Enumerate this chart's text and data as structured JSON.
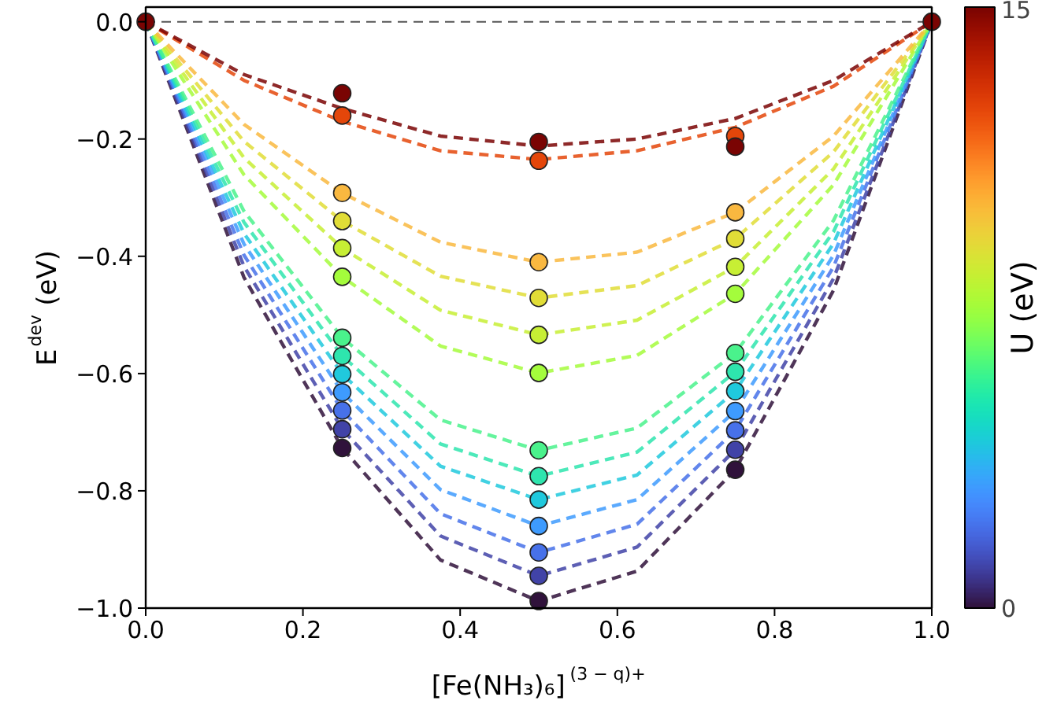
{
  "chart_data": {
    "type": "line",
    "xlabel": "[Fe(NH₃)₆]$^{(3 − q)+}$",
    "ylabel": "E$^{dev}$ (eV)",
    "clabel": "U (eV)",
    "clim": [
      0,
      15
    ],
    "cticks": [
      0,
      15
    ],
    "xlim": [
      0,
      1
    ],
    "ylim": [
      -1.0,
      0.025
    ],
    "xticks": [
      {
        "value": 0,
        "label": "0.0"
      },
      {
        "value": 0.2,
        "label": "0.2"
      },
      {
        "value": 0.4,
        "label": "0.4"
      },
      {
        "value": 0.6,
        "label": "0.6"
      },
      {
        "value": 0.8,
        "label": "0.8"
      },
      {
        "value": 1,
        "label": "1.0"
      }
    ],
    "yticks": [
      {
        "value": -1.0,
        "label": "−1.0"
      },
      {
        "value": -0.8,
        "label": "−0.8"
      },
      {
        "value": -0.6,
        "label": "−0.6"
      },
      {
        "value": -0.4,
        "label": "−0.4"
      },
      {
        "value": -0.2,
        "label": "−0.2"
      },
      {
        "value": 0,
        "label": "0.0"
      }
    ],
    "grid": false,
    "line_style": "dashed",
    "ref_lines": [
      {
        "axis": "y",
        "value": 0,
        "color": "#555555",
        "line_style": "dashed"
      }
    ],
    "x": [
      0,
      0.125,
      0.25,
      0.375,
      0.5,
      0.625,
      0.75,
      0.875,
      1
    ],
    "series": [
      {
        "color": "#30123b",
        "values": [
          0,
          -0.436,
          -0.727,
          -0.918,
          -0.988,
          -0.937,
          -0.764,
          -0.458,
          0
        ]
      },
      {
        "color": "#4143a7",
        "values": [
          0,
          -0.417,
          -0.695,
          -0.877,
          -0.945,
          -0.896,
          -0.73,
          -0.438,
          0
        ]
      },
      {
        "color": "#4771e9",
        "values": [
          0,
          -0.398,
          -0.663,
          -0.839,
          -0.905,
          -0.857,
          -0.697,
          -0.418,
          0
        ]
      },
      {
        "color": "#3e9bfe",
        "values": [
          0,
          -0.379,
          -0.632,
          -0.798,
          -0.86,
          -0.815,
          -0.664,
          -0.398,
          0
        ]
      },
      {
        "color": "#20c9dd",
        "values": [
          0,
          -0.361,
          -0.601,
          -0.758,
          -0.815,
          -0.773,
          -0.63,
          -0.378,
          0
        ]
      },
      {
        "color": "#2ee5ae",
        "values": [
          0,
          -0.342,
          -0.57,
          -0.72,
          -0.775,
          -0.734,
          -0.597,
          -0.358,
          0
        ]
      },
      {
        "color": "#4af28c",
        "values": [
          0,
          -0.323,
          -0.539,
          -0.679,
          -0.731,
          -0.693,
          -0.565,
          -0.339,
          0
        ]
      },
      {
        "color": "#a4fc3c",
        "values": [
          0,
          -0.261,
          -0.435,
          -0.553,
          -0.599,
          -0.569,
          -0.464,
          -0.278,
          0
        ]
      },
      {
        "color": "#c7ef34",
        "values": [
          0,
          -0.232,
          -0.386,
          -0.492,
          -0.534,
          -0.509,
          -0.418,
          -0.251,
          0
        ]
      },
      {
        "color": "#e1dd37",
        "values": [
          0,
          -0.204,
          -0.34,
          -0.434,
          -0.471,
          -0.45,
          -0.37,
          -0.222,
          0
        ]
      },
      {
        "color": "#f9b840",
        "values": [
          0,
          -0.175,
          -0.292,
          -0.376,
          -0.41,
          -0.393,
          -0.325,
          -0.195,
          0
        ]
      },
      {
        "color": "#e4460a",
        "values": [
          0,
          -0.1,
          -0.17,
          -0.22,
          -0.235,
          -0.22,
          -0.18,
          -0.11,
          0
        ]
      },
      {
        "color": "#7a0403",
        "values": [
          0,
          -0.09,
          -0.148,
          -0.195,
          -0.212,
          -0.2,
          -0.165,
          -0.1,
          0
        ]
      },
      {
        "type": "scatter",
        "marker": "circle",
        "x": [
          0.25,
          0.5,
          0.75,
          0.25,
          0.5,
          0.75,
          0.25,
          0.5,
          0.75,
          0.25,
          0.5,
          0.75,
          0.25,
          0.5,
          0.75,
          0.25,
          0.5,
          0.75,
          0.25,
          0.5,
          0.75,
          0.25,
          0.5,
          0.75,
          0.25,
          0.5,
          0.75,
          0.25,
          0.5,
          0.75,
          0.25,
          0.5,
          0.75,
          0.25,
          0.5,
          0.75,
          0,
          0.25,
          0.5,
          0.75,
          1
        ],
        "values": [
          -0.727,
          -0.988,
          -0.764,
          -0.695,
          -0.945,
          -0.73,
          -0.663,
          -0.905,
          -0.697,
          -0.632,
          -0.86,
          -0.664,
          -0.601,
          -0.815,
          -0.63,
          -0.57,
          -0.775,
          -0.597,
          -0.539,
          -0.731,
          -0.565,
          -0.435,
          -0.599,
          -0.464,
          -0.386,
          -0.534,
          -0.418,
          -0.34,
          -0.471,
          -0.37,
          -0.292,
          -0.41,
          -0.325,
          -0.16,
          -0.237,
          -0.195,
          0,
          -0.122,
          -0.205,
          -0.213,
          0
        ],
        "colors": [
          "#30123b",
          "#30123b",
          "#30123b",
          "#4143a7",
          "#4143a7",
          "#4143a7",
          "#4771e9",
          "#4771e9",
          "#4771e9",
          "#3e9bfe",
          "#3e9bfe",
          "#3e9bfe",
          "#20c9dd",
          "#20c9dd",
          "#20c9dd",
          "#2ee5ae",
          "#2ee5ae",
          "#2ee5ae",
          "#4af28c",
          "#4af28c",
          "#4af28c",
          "#a4fc3c",
          "#a4fc3c",
          "#a4fc3c",
          "#c7ef34",
          "#c7ef34",
          "#c7ef34",
          "#e1dd37",
          "#e1dd37",
          "#e1dd37",
          "#f9b840",
          "#f9b840",
          "#f9b840",
          "#e4460a",
          "#e4460a",
          "#e4460a",
          "#7a0403",
          "#7a0403",
          "#7a0403",
          "#7a0403",
          "#7a0403"
        ]
      }
    ]
  }
}
